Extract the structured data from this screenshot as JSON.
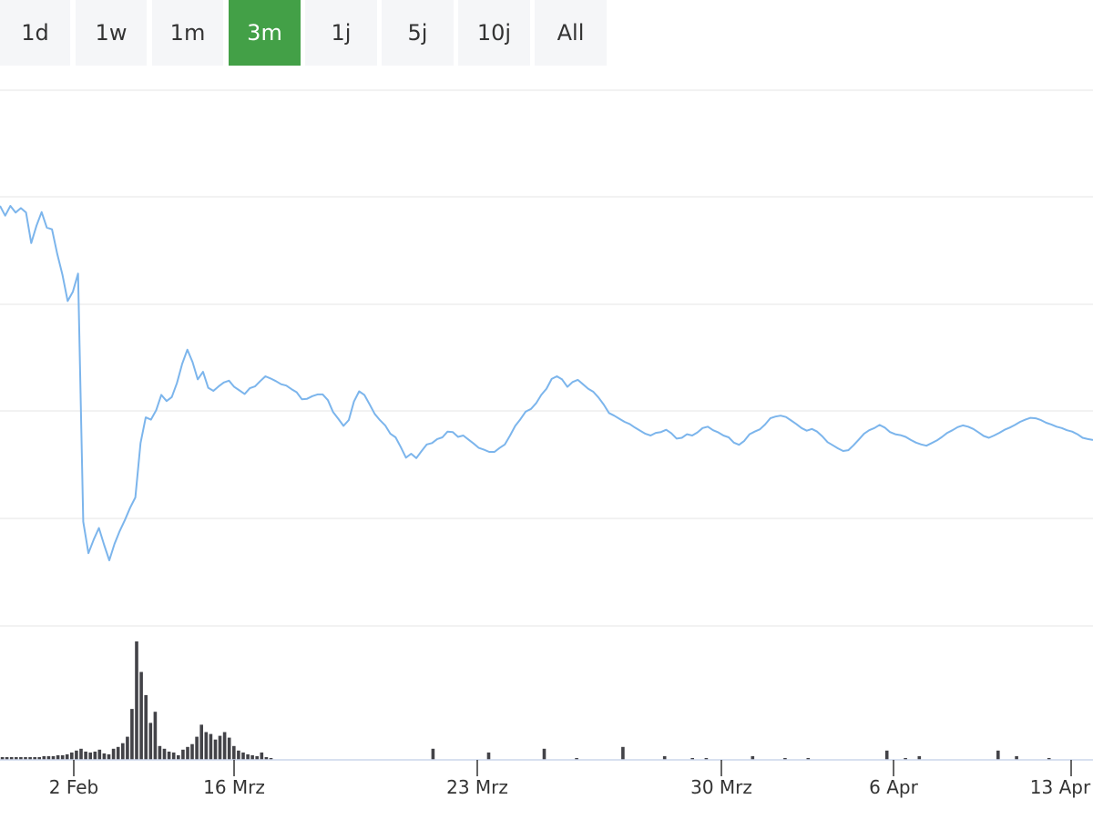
{
  "range_selector": {
    "buttons": [
      {
        "label": "1d",
        "active": false
      },
      {
        "label": "1w",
        "active": false
      },
      {
        "label": "1m",
        "active": false
      },
      {
        "label": "3m",
        "active": true
      },
      {
        "label": "1j",
        "active": false
      },
      {
        "label": "5j",
        "active": false
      },
      {
        "label": "10j",
        "active": false
      },
      {
        "label": "All",
        "active": false
      }
    ],
    "active_color": "#43a047"
  },
  "chart_data": {
    "type": "line",
    "x_axis_ticks": [
      "2 Feb",
      "16 Mrz",
      "23 Mrz",
      "30 Mrz",
      "6 Apr",
      "13 Apr"
    ],
    "grid": true,
    "series": [
      {
        "type": "line",
        "color": "#7cb5ec",
        "values": [
          100,
          97.8,
          100,
          98.5,
          99.5,
          98.5,
          91.6,
          95.5,
          98.6,
          95.1,
          94.7,
          89.1,
          84.4,
          78.5,
          80.6,
          84.7,
          28.6,
          21.5,
          24.6,
          27.2,
          23.4,
          19.9,
          23.6,
          26.5,
          29.0,
          31.8,
          34.1,
          46.4,
          52.2,
          51.7,
          53.8,
          57.3,
          55.9,
          56.8,
          60.0,
          64.3,
          67.5,
          64.7,
          60.8,
          62.5,
          58.9,
          58.2,
          59.2,
          60.1,
          60.5,
          59.1,
          58.3,
          57.5,
          58.8,
          59.2,
          60.4,
          61.5,
          61.0,
          60.4,
          59.7,
          59.4,
          58.6,
          57.9,
          56.3,
          56.4,
          57.0,
          57.4,
          57.4,
          56.1,
          53.4,
          51.9,
          50.3,
          51.6,
          55.8,
          58.1,
          57.3,
          55.2,
          53.0,
          51.6,
          50.4,
          48.5,
          47.7,
          45.5,
          43.1,
          44.0,
          43.0,
          44.6,
          46.1,
          46.4,
          47.3,
          47.7,
          49.0,
          48.9,
          47.8,
          48.1,
          47.2,
          46.3,
          45.3,
          44.9,
          44.4,
          44.4,
          45.3,
          46.1,
          48.1,
          50.3,
          51.8,
          53.5,
          54.1,
          55.4,
          57.3,
          58.7,
          60.9,
          61.5,
          60.8,
          59.1,
          60.2,
          60.7,
          59.7,
          58.7,
          58.0,
          56.7,
          55.1,
          53.2,
          52.6,
          51.9,
          51.2,
          50.7,
          49.9,
          49.2,
          48.5,
          48.1,
          48.7,
          48.9,
          49.4,
          48.6,
          47.4,
          47.6,
          48.4,
          48.1,
          48.8,
          49.8,
          50.1,
          49.3,
          48.8,
          48.1,
          47.7,
          46.5,
          46.0,
          46.9,
          48.4,
          49.0,
          49.5,
          50.6,
          52.0,
          52.4,
          52.6,
          52.3,
          51.5,
          50.7,
          49.8,
          49.2,
          49.6,
          49.0,
          47.9,
          46.6,
          45.9,
          45.2,
          44.6,
          44.8,
          45.9,
          47.2,
          48.5,
          49.3,
          49.8,
          50.5,
          49.9,
          48.9,
          48.4,
          48.2,
          47.8,
          47.1,
          46.5,
          46.1,
          45.8,
          46.4,
          47.0,
          47.8,
          48.7,
          49.3,
          50.0,
          50.4,
          50.1,
          49.6,
          48.8,
          48.0,
          47.6,
          48.1,
          48.7,
          49.4,
          49.9,
          50.5,
          51.2,
          51.7,
          52.1,
          52.0,
          51.6,
          51.0,
          50.6,
          50.1,
          49.8,
          49.3,
          49.0,
          48.4,
          47.6,
          47.3,
          47.1
        ],
        "markers": false
      }
    ],
    "volume_values": [
      3,
      3,
      3,
      3,
      3,
      3,
      3,
      3,
      3,
      4,
      4,
      4,
      5,
      5,
      6,
      8,
      10,
      12,
      9,
      8,
      9,
      11,
      7,
      6,
      12,
      14,
      18,
      25,
      55,
      128,
      95,
      70,
      40,
      52,
      15,
      12,
      9,
      8,
      5,
      11,
      14,
      17,
      25,
      38,
      30,
      28,
      22,
      26,
      30,
      24,
      15,
      10,
      8,
      6,
      5,
      4,
      8,
      3,
      2,
      0,
      0,
      0,
      0,
      0,
      0,
      0,
      0,
      0,
      0,
      0,
      0,
      0,
      0,
      0,
      0,
      0,
      0,
      0,
      0,
      0,
      0,
      0,
      0,
      0,
      0,
      0,
      0,
      0,
      0,
      0,
      0,
      0,
      0,
      12,
      0,
      0,
      0,
      0,
      0,
      0,
      0,
      0,
      0,
      0,
      0,
      8,
      0,
      0,
      0,
      0,
      0,
      0,
      0,
      0,
      0,
      0,
      0,
      12,
      0,
      0,
      0,
      0,
      0,
      0,
      2,
      0,
      0,
      0,
      0,
      0,
      0,
      0,
      0,
      0,
      14,
      0,
      0,
      0,
      0,
      0,
      0,
      0,
      0,
      4,
      0,
      0,
      0,
      0,
      0,
      2,
      0,
      0,
      2,
      0,
      0,
      0,
      0,
      0,
      0,
      0,
      0,
      0,
      4,
      0,
      0,
      0,
      0,
      0,
      0,
      2,
      0,
      0,
      0,
      0,
      2,
      0,
      0,
      0,
      0,
      0,
      0,
      0,
      0,
      0,
      0,
      0,
      0,
      0,
      0,
      0,
      0,
      10,
      0,
      0,
      0,
      2,
      0,
      0,
      4,
      0,
      0,
      0,
      0,
      0,
      0,
      0,
      0,
      0,
      0,
      0,
      0,
      0,
      0,
      0,
      0,
      10,
      0,
      0,
      0,
      4,
      0,
      0,
      0,
      0,
      0,
      0,
      2,
      0,
      0,
      0,
      0,
      0,
      0,
      0,
      0,
      0
    ],
    "volume_color": "#434348"
  }
}
